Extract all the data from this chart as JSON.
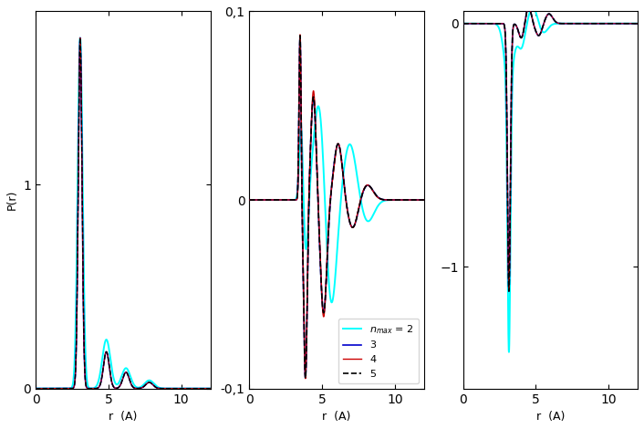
{
  "xlim": [
    0,
    12
  ],
  "ylim_left": [
    0,
    1.85
  ],
  "ylim_mid": [
    -0.1,
    0.1
  ],
  "ylim_right": [
    -1.5,
    0.05
  ],
  "xlabel": "r  (A)",
  "ylabel": "P(r)",
  "colors": {
    "nmax2": "#00FFFF",
    "nmax3": "#0000CC",
    "nmax4": "#CC0000",
    "nmax5": "#000000"
  },
  "yticks_left": [
    0,
    1
  ],
  "yticks_mid_vals": [
    -0.1,
    0,
    0.1
  ],
  "yticks_mid_labels": [
    "-0,1",
    "0",
    "0,1"
  ],
  "yticks_right": [
    -1,
    0
  ],
  "xticks": [
    0,
    5,
    10
  ],
  "figsize": [
    7.06,
    4.7
  ],
  "dpi": 100
}
